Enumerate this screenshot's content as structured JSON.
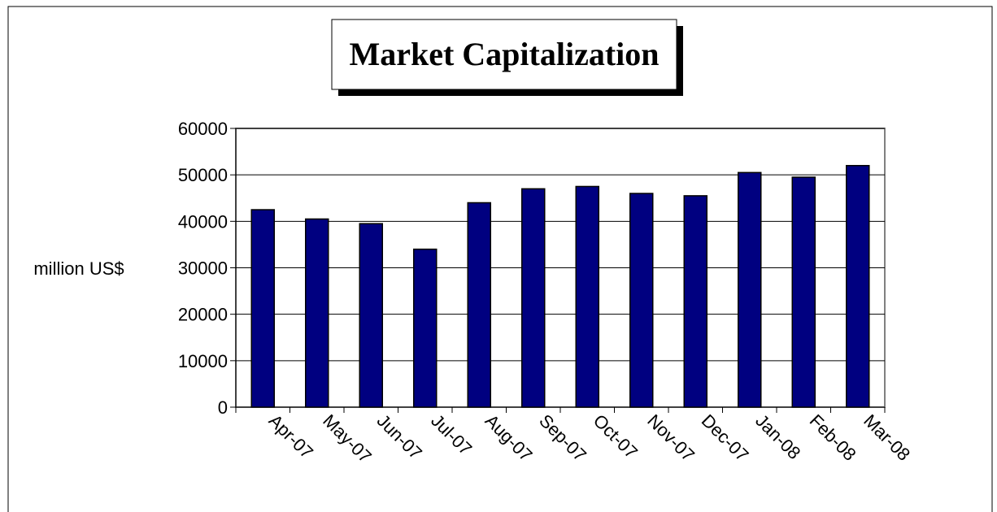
{
  "chart_data": {
    "type": "bar",
    "title": "Market Capitalization",
    "y_label": "million US$",
    "categories": [
      "Apr-07",
      "May-07",
      "Jun-07",
      "Jul-07",
      "Aug-07",
      "Sep-07",
      "Oct-07",
      "Nov-07",
      "Dec-07",
      "Jan-08",
      "Feb-08",
      "Mar-08"
    ],
    "values": [
      42500,
      40500,
      39500,
      34000,
      44000,
      47000,
      47500,
      46000,
      45500,
      50500,
      49500,
      52000
    ],
    "color": "#000080",
    "ylim": [
      0,
      60000
    ],
    "yticks": [
      0,
      10000,
      20000,
      30000,
      40000,
      50000,
      60000
    ],
    "grid": true
  }
}
